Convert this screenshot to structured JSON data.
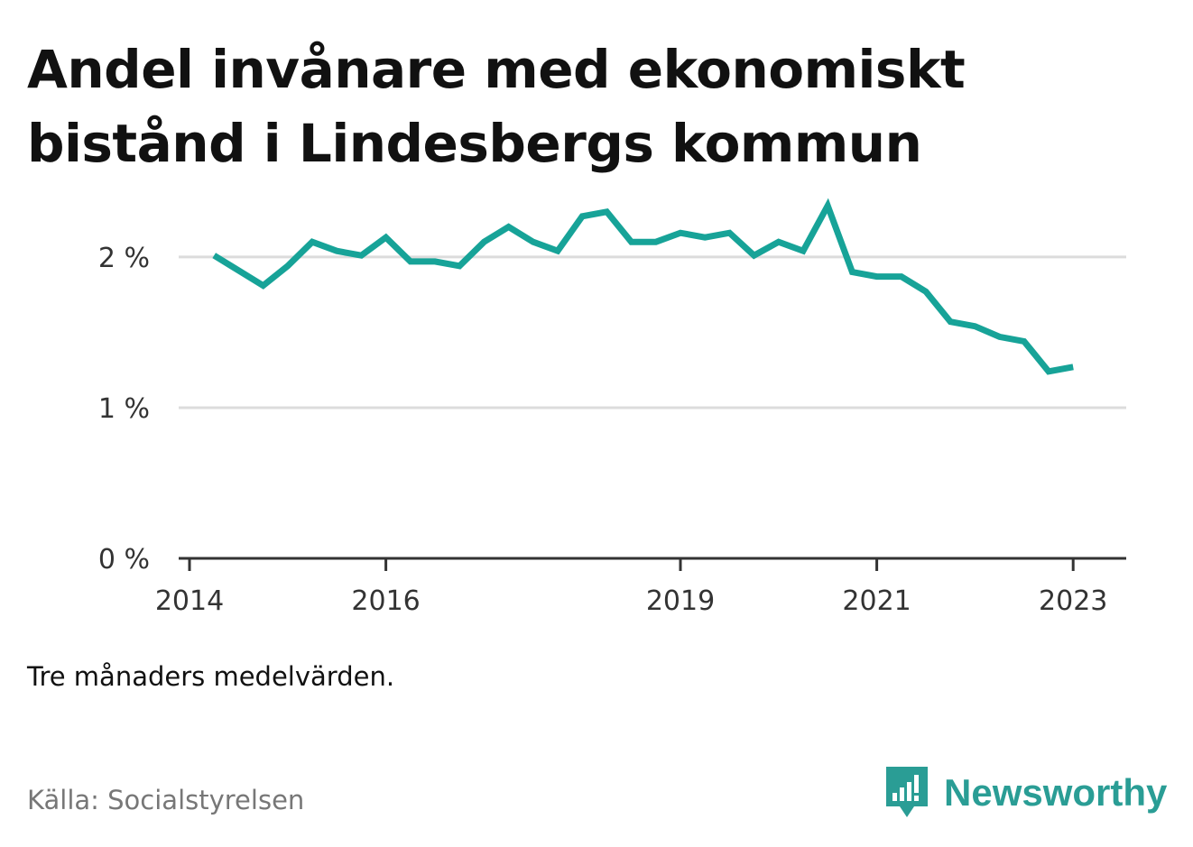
{
  "title": "Andel invånare med ekonomiskt bistånd i Lindesbergs kommun",
  "note": "Tre månaders medelvärden.",
  "source": "Källa: Socialstyrelsen",
  "brand": {
    "name": "Newsworthy",
    "icon": "newsworthy-logo-icon",
    "color": "#2a9d95"
  },
  "chart_data": {
    "type": "line",
    "title": "Andel invånare med ekonomiskt bistånd i Lindesbergs kommun",
    "xlabel": "",
    "ylabel": "",
    "x_ticks": [
      2014,
      2016,
      2019,
      2021,
      2023
    ],
    "y_ticks": [
      {
        "value": 0,
        "label": "0 %"
      },
      {
        "value": 1,
        "label": "1 %"
      },
      {
        "value": 2,
        "label": "2 %"
      }
    ],
    "xlim": [
      2014,
      2023.5
    ],
    "ylim": [
      0,
      2.55
    ],
    "grid": true,
    "line_color": "#17a398",
    "series": [
      {
        "x": [
          2014.25,
          2014.5,
          2014.75,
          2015.0,
          2015.25,
          2015.5,
          2015.75,
          2016.0,
          2016.25,
          2016.5,
          2016.75,
          2017.0,
          2017.25,
          2017.5,
          2017.75,
          2018.0,
          2018.25,
          2018.5,
          2018.75,
          2019.0,
          2019.25,
          2019.5,
          2019.75,
          2020.0,
          2020.25,
          2020.5,
          2020.75,
          2021.0,
          2021.25,
          2021.5,
          2021.75,
          2022.0,
          2022.25,
          2022.5,
          2022.75,
          2023.0
        ],
        "values": [
          2.01,
          1.91,
          1.81,
          1.94,
          2.1,
          2.04,
          2.01,
          2.13,
          1.97,
          1.97,
          1.94,
          2.1,
          2.2,
          2.1,
          2.04,
          2.27,
          2.3,
          2.1,
          2.1,
          2.16,
          2.13,
          2.16,
          2.01,
          2.1,
          2.04,
          2.34,
          1.9,
          1.87,
          1.87,
          1.77,
          1.57,
          1.54,
          1.47,
          1.44,
          1.24,
          1.27
        ]
      }
    ]
  }
}
